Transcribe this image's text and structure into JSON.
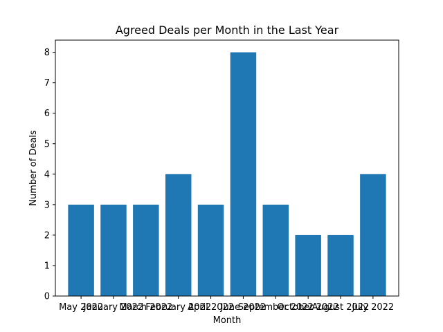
{
  "chart_data": {
    "type": "bar",
    "title": "Agreed Deals per Month in the Last Year",
    "xlabel": "Month",
    "ylabel": "Number of Deals",
    "categories": [
      "May 2022",
      "January 2022",
      "March 2022",
      "February 2022",
      "April 2022",
      "June 2022",
      "September 2022",
      "October 2022",
      "August 2022",
      "July 2022"
    ],
    "values": [
      3,
      3,
      3,
      4,
      3,
      8,
      3,
      2,
      2,
      4
    ],
    "ylim": [
      0,
      8.4
    ],
    "yticks": [
      0,
      1,
      2,
      3,
      4,
      5,
      6,
      7,
      8
    ],
    "bar_color": "#1f77b4",
    "grid": false,
    "legend": "none"
  }
}
